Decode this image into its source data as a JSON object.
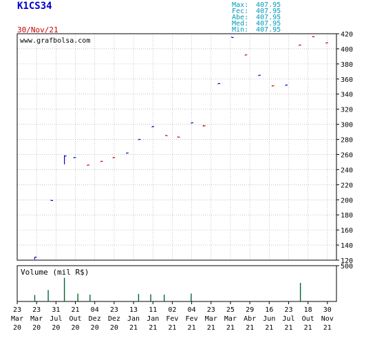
{
  "header": {
    "ticker": "K1CS34",
    "date": "30/Nov/21",
    "stats": [
      {
        "label": "Max:",
        "value": "407.95"
      },
      {
        "label": "Fec:",
        "value": "407.95"
      },
      {
        "label": "Abe:",
        "value": "407.95"
      },
      {
        "label": "Med:",
        "value": "407.95"
      },
      {
        "label": "Min:",
        "value": "407.95"
      }
    ]
  },
  "watermark": "www.grafbolsa.com",
  "colors": {
    "title": "#0000cc",
    "date": "#cc0000",
    "stats": "#0099bb",
    "up": "#0000cc",
    "down": "#cc0000",
    "volume": "#006633",
    "grid": "#9a9a9a",
    "axis": "#000000"
  },
  "chart_data": [
    {
      "type": "ohlc",
      "ylim": [
        120,
        420
      ],
      "yticks": [
        120,
        140,
        160,
        180,
        200,
        220,
        240,
        260,
        280,
        300,
        320,
        340,
        360,
        380,
        400,
        420
      ],
      "grid": true,
      "candles": [
        {
          "slot": 1.3,
          "low": 121,
          "high": 124,
          "close": 124,
          "dir": "up"
        },
        {
          "slot": 2.5,
          "low": 199,
          "high": 199,
          "close": 199,
          "dir": "up"
        },
        {
          "slot": 3.5,
          "low": 247,
          "high": 259,
          "close": 258,
          "dir": "up"
        },
        {
          "slot": 4.2,
          "low": 255,
          "high": 256,
          "close": 256,
          "dir": "up"
        },
        {
          "slot": 5.2,
          "low": 245,
          "high": 246,
          "close": 246,
          "dir": "down"
        },
        {
          "slot": 6.2,
          "low": 250,
          "high": 251,
          "close": 251,
          "dir": "down"
        },
        {
          "slot": 7.1,
          "low": 255,
          "high": 256,
          "close": 256,
          "dir": "down"
        },
        {
          "slot": 8.1,
          "low": 261,
          "high": 262,
          "close": 262,
          "dir": "up"
        },
        {
          "slot": 9.0,
          "low": 279,
          "high": 280,
          "close": 280,
          "dir": "up"
        },
        {
          "slot": 10.0,
          "low": 296,
          "high": 297,
          "close": 297,
          "dir": "up"
        },
        {
          "slot": 11.0,
          "low": 285,
          "high": 285,
          "close": 285,
          "dir": "down"
        },
        {
          "slot": 11.9,
          "low": 283,
          "high": 283,
          "close": 283,
          "dir": "down"
        },
        {
          "slot": 12.9,
          "low": 301,
          "high": 302,
          "close": 302,
          "dir": "up"
        },
        {
          "slot": 13.8,
          "low": 297,
          "high": 299,
          "close": 298,
          "dir": "down"
        },
        {
          "slot": 14.9,
          "low": 353,
          "high": 354,
          "close": 354,
          "dir": "up"
        },
        {
          "slot": 15.9,
          "low": 415,
          "high": 416,
          "close": 415,
          "dir": "up"
        },
        {
          "slot": 16.9,
          "low": 391,
          "high": 392,
          "close": 392,
          "dir": "down"
        },
        {
          "slot": 17.9,
          "low": 364,
          "high": 365,
          "close": 365,
          "dir": "up"
        },
        {
          "slot": 18.9,
          "low": 350,
          "high": 351,
          "close": 351,
          "dir": "down"
        },
        {
          "slot": 19.9,
          "low": 351,
          "high": 352,
          "close": 352,
          "dir": "up"
        },
        {
          "slot": 20.9,
          "low": 404,
          "high": 405,
          "close": 405,
          "dir": "down"
        },
        {
          "slot": 21.9,
          "low": 416,
          "high": 417,
          "close": 416,
          "dir": "down"
        },
        {
          "slot": 22.9,
          "low": 407,
          "high": 408,
          "close": 408,
          "dir": "down"
        }
      ]
    },
    {
      "type": "bar",
      "title": "Volume (mil R$)",
      "ylim": [
        0,
        500
      ],
      "yticks": [
        500
      ],
      "bars": [
        {
          "slot": 1.3,
          "value": 90
        },
        {
          "slot": 2.3,
          "value": 160
        },
        {
          "slot": 3.5,
          "value": 330
        },
        {
          "slot": 4.5,
          "value": 110
        },
        {
          "slot": 5.4,
          "value": 95
        },
        {
          "slot": 9.0,
          "value": 105
        },
        {
          "slot": 9.9,
          "value": 100
        },
        {
          "slot": 10.9,
          "value": 95
        },
        {
          "slot": 12.9,
          "value": 110
        },
        {
          "slot": 21.0,
          "value": 260
        }
      ]
    }
  ],
  "x_axis": {
    "ticks": [
      {
        "day": "23",
        "mon": "Mar",
        "yr": "20"
      },
      {
        "day": "23",
        "mon": "Mar",
        "yr": "20"
      },
      {
        "day": "31",
        "mon": "Jul",
        "yr": "20"
      },
      {
        "day": "21",
        "mon": "Out",
        "yr": "20"
      },
      {
        "day": "04",
        "mon": "Dez",
        "yr": "20"
      },
      {
        "day": "23",
        "mon": "Dez",
        "yr": "20"
      },
      {
        "day": "13",
        "mon": "Jan",
        "yr": "21"
      },
      {
        "day": "11",
        "mon": "Jan",
        "yr": "21"
      },
      {
        "day": "02",
        "mon": "Fev",
        "yr": "21"
      },
      {
        "day": "04",
        "mon": "Fev",
        "yr": "21"
      },
      {
        "day": "23",
        "mon": "Mar",
        "yr": "21"
      },
      {
        "day": "25",
        "mon": "Mar",
        "yr": "21"
      },
      {
        "day": "29",
        "mon": "Abr",
        "yr": "21"
      },
      {
        "day": "16",
        "mon": "Jun",
        "yr": "21"
      },
      {
        "day": "23",
        "mon": "Jul",
        "yr": "21"
      },
      {
        "day": "18",
        "mon": "Out",
        "yr": "21"
      },
      {
        "day": "30",
        "mon": "Nov",
        "yr": "21"
      }
    ]
  }
}
